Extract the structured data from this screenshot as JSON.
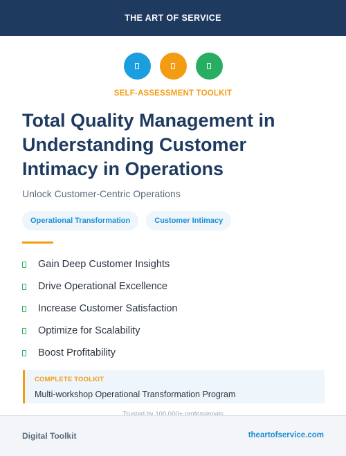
{
  "banner": {
    "brand": "THE ART OF SERVICE"
  },
  "icons": [
    {
      "name": "document-icon",
      "color": "#1a9ee0"
    },
    {
      "name": "document-icon",
      "color": "#f39c12"
    },
    {
      "name": "document-icon",
      "color": "#27ae60"
    }
  ],
  "kicker": {
    "text": "SELF-ASSESSMENT TOOLKIT",
    "color": "#f39c12"
  },
  "title": "Total Quality Management in Understanding Customer Intimacy in Operations",
  "subtitle": "Unlock Customer-Centric Operations",
  "tags": [
    "Operational Transformation",
    "Customer Intimacy"
  ],
  "benefits": [
    "Gain Deep Customer Insights",
    "Drive Operational Excellence",
    "Increase Customer Satisfaction",
    "Optimize for Scalability",
    "Boost Profitability"
  ],
  "callout": {
    "kicker": "COMPLETE TOOLKIT",
    "text": "Multi-workshop Operational Transformation Program"
  },
  "trusted": "Trusted by 100,000+ professionals",
  "footer": {
    "left": "Digital Toolkit",
    "right": "theartofservice.com"
  },
  "colors": {
    "navy": "#1e3a5f",
    "accent_orange": "#f39c12",
    "accent_blue": "#1a8fd6",
    "accent_green": "#27ae60"
  }
}
